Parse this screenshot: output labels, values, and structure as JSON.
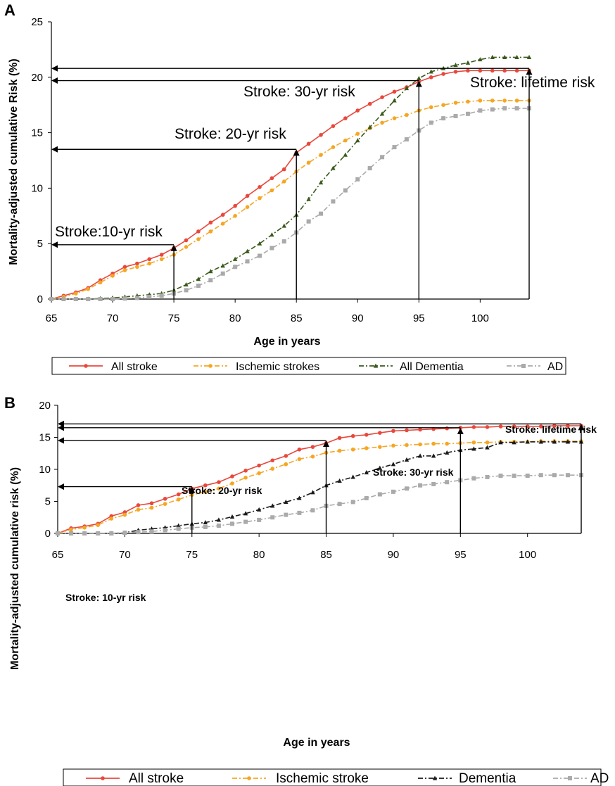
{
  "chart_data": [
    {
      "type": "line",
      "panel_label": "A",
      "xlabel": "Age in years",
      "ylabel": "Mortality-adjusted cumulative Risk (%)",
      "xlim": [
        65,
        104
      ],
      "ylim": [
        0,
        25
      ],
      "x_ticks": [
        65,
        70,
        75,
        80,
        85,
        90,
        95,
        100
      ],
      "y_ticks": [
        0,
        5,
        10,
        15,
        20,
        25
      ],
      "grid": false,
      "legend_position": "bottom",
      "x": [
        65,
        66,
        67,
        68,
        69,
        70,
        71,
        72,
        73,
        74,
        75,
        76,
        77,
        78,
        79,
        80,
        81,
        82,
        83,
        84,
        85,
        86,
        87,
        88,
        89,
        90,
        91,
        92,
        93,
        94,
        95,
        96,
        97,
        98,
        99,
        100,
        101,
        102,
        103,
        104
      ],
      "series": [
        {
          "name": "All stroke",
          "color": "#e8483c",
          "marker": "circle",
          "dash": "solid",
          "values": [
            0,
            0.3,
            0.6,
            1.0,
            1.7,
            2.3,
            2.9,
            3.2,
            3.6,
            4.0,
            4.6,
            5.3,
            6.1,
            6.9,
            7.6,
            8.4,
            9.3,
            10.1,
            10.9,
            11.7,
            13.2,
            14.0,
            14.8,
            15.6,
            16.3,
            17.0,
            17.6,
            18.2,
            18.7,
            19.1,
            19.6,
            20.0,
            20.3,
            20.5,
            20.6,
            20.6,
            20.6,
            20.6,
            20.6,
            20.6
          ]
        },
        {
          "name": "Ischemic strokes",
          "color": "#f5a623",
          "marker": "circle",
          "dash": "dashdot",
          "values": [
            0,
            0.2,
            0.5,
            0.9,
            1.5,
            2.1,
            2.6,
            2.9,
            3.2,
            3.6,
            4.0,
            4.7,
            5.4,
            6.1,
            6.8,
            7.5,
            8.3,
            9.1,
            9.8,
            10.6,
            11.5,
            12.3,
            13.0,
            13.7,
            14.3,
            14.9,
            15.4,
            15.9,
            16.3,
            16.6,
            17.0,
            17.3,
            17.5,
            17.7,
            17.8,
            17.9,
            17.9,
            17.9,
            17.9,
            17.9
          ]
        },
        {
          "name": "All Dementia",
          "color": "#3a5a1c",
          "marker": "triangle",
          "dash": "dashdot",
          "values": [
            0,
            0,
            0,
            0,
            0.05,
            0.1,
            0.2,
            0.3,
            0.4,
            0.5,
            0.8,
            1.3,
            1.8,
            2.5,
            3.0,
            3.6,
            4.3,
            5.0,
            5.8,
            6.6,
            7.6,
            9.0,
            10.5,
            11.8,
            13.0,
            14.3,
            15.5,
            16.7,
            17.9,
            19.0,
            19.9,
            20.5,
            20.8,
            21.1,
            21.3,
            21.6,
            21.8,
            21.8,
            21.8,
            21.8
          ]
        },
        {
          "name": "AD",
          "color": "#aaaaaa",
          "marker": "square",
          "dash": "dashdot",
          "values": [
            0,
            0,
            0,
            0,
            0,
            0,
            0.05,
            0.1,
            0.2,
            0.3,
            0.5,
            0.8,
            1.2,
            1.7,
            2.3,
            2.9,
            3.4,
            3.9,
            4.6,
            5.2,
            6.0,
            7.0,
            7.7,
            8.8,
            9.8,
            10.8,
            11.8,
            12.8,
            13.7,
            14.4,
            15.2,
            15.9,
            16.3,
            16.5,
            16.7,
            17.0,
            17.1,
            17.2,
            17.2,
            17.2
          ]
        }
      ],
      "annotations": [
        {
          "text": "Stroke:10-yr risk",
          "x_start": 75,
          "y_value": 4.9
        },
        {
          "text": "Stroke: 20-yr risk",
          "x_start": 85,
          "y_value": 13.5
        },
        {
          "text": "Stroke: 30-yr risk",
          "x_start": 95,
          "y_value": 19.7
        },
        {
          "text": "Stroke: lifetime risk",
          "x_start": 104,
          "y_value": 20.8
        }
      ]
    },
    {
      "type": "line",
      "panel_label": "B",
      "xlabel": "Age in years",
      "ylabel": "Mortality-adjusted cumulative risk (%)",
      "xlim": [
        65,
        104
      ],
      "ylim": [
        0,
        20
      ],
      "x_ticks": [
        65,
        70,
        75,
        80,
        85,
        90,
        95,
        100
      ],
      "y_ticks": [
        0,
        5,
        10,
        15,
        20
      ],
      "grid": false,
      "legend_position": "bottom",
      "x": [
        65,
        66,
        67,
        68,
        69,
        70,
        71,
        72,
        73,
        74,
        75,
        76,
        77,
        78,
        79,
        80,
        81,
        82,
        83,
        84,
        85,
        86,
        87,
        88,
        89,
        90,
        91,
        92,
        93,
        94,
        95,
        96,
        97,
        98,
        99,
        100,
        101,
        102,
        103,
        104
      ],
      "series": [
        {
          "name": "All stroke",
          "color": "#e8483c",
          "marker": "circle",
          "dash": "solid",
          "values": [
            0,
            0.8,
            1.1,
            1.5,
            2.7,
            3.3,
            4.4,
            4.7,
            5.4,
            6.1,
            7.0,
            7.5,
            8.0,
            8.9,
            9.8,
            10.6,
            11.4,
            12.1,
            13.1,
            13.5,
            14.1,
            14.9,
            15.2,
            15.4,
            15.7,
            16.0,
            16.1,
            16.2,
            16.3,
            16.4,
            16.5,
            16.6,
            16.6,
            16.7,
            16.7,
            16.7,
            16.7,
            16.8,
            16.8,
            16.8
          ]
        },
        {
          "name": "Ischemic stroke",
          "color": "#f5a623",
          "marker": "circle",
          "dash": "dashdot",
          "values": [
            0,
            0.6,
            0.9,
            1.3,
            2.3,
            2.9,
            3.7,
            4.0,
            4.6,
            5.3,
            6.0,
            6.5,
            7.0,
            7.8,
            8.7,
            9.4,
            10.1,
            10.8,
            11.6,
            12.0,
            12.6,
            12.9,
            13.1,
            13.3,
            13.5,
            13.7,
            13.8,
            13.9,
            14.0,
            14.0,
            14.1,
            14.2,
            14.2,
            14.3,
            14.3,
            14.3,
            14.4,
            14.4,
            14.4,
            14.4
          ]
        },
        {
          "name": "Dementia",
          "color": "#1a1a1a",
          "marker": "triangle",
          "dash": "dashdot",
          "values": [
            0,
            0,
            0,
            0,
            0,
            0.1,
            0.5,
            0.7,
            0.9,
            1.2,
            1.5,
            1.7,
            2.1,
            2.6,
            3.1,
            3.7,
            4.3,
            4.9,
            5.5,
            6.4,
            7.5,
            8.2,
            8.8,
            9.5,
            10.2,
            10.8,
            11.5,
            12.1,
            12.1,
            12.6,
            13.0,
            13.2,
            13.4,
            14.2,
            14.2,
            14.3,
            14.3,
            14.3,
            14.3,
            14.3
          ]
        },
        {
          "name": "AD",
          "color": "#aaaaaa",
          "marker": "square",
          "dash": "dashdot",
          "values": [
            0,
            0,
            0,
            0,
            0,
            0.1,
            0.2,
            0.3,
            0.5,
            0.7,
            0.9,
            1.0,
            1.2,
            1.5,
            1.8,
            2.1,
            2.5,
            2.9,
            3.2,
            3.6,
            4.3,
            4.6,
            4.9,
            5.5,
            6.1,
            6.5,
            7.0,
            7.5,
            7.7,
            8.0,
            8.3,
            8.6,
            8.8,
            9.0,
            9.0,
            9.0,
            9.1,
            9.1,
            9.1,
            9.1
          ]
        }
      ],
      "annotations": [
        {
          "text": "Stroke: 10-yr risk",
          "x_start": 75,
          "y_value": 7.3
        },
        {
          "text": "Stroke: 20-yr risk",
          "x_start": 85,
          "y_value": 14.5
        },
        {
          "text": "Stroke: 30-yr risk",
          "x_start": 95,
          "y_value": 16.5
        },
        {
          "text": "Stroke: lifetime risk",
          "x_start": 104,
          "y_value": 17.1
        }
      ]
    }
  ]
}
